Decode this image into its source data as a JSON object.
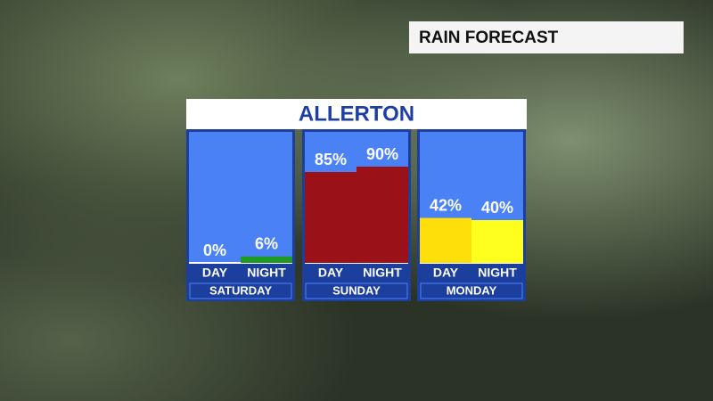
{
  "header": {
    "title": "RAIN FORECAST"
  },
  "chart_data": {
    "type": "bar",
    "title": "ALLERTON",
    "ylim": [
      0,
      100
    ],
    "groups": [
      {
        "name": "SATURDAY",
        "categories": [
          "DAY",
          "NIGHT"
        ],
        "values": [
          0,
          6
        ],
        "value_labels": [
          "0%",
          "6%"
        ],
        "colors": [
          "#ffffff",
          "#1f9a22"
        ]
      },
      {
        "name": "SUNDAY",
        "categories": [
          "DAY",
          "NIGHT"
        ],
        "values": [
          85,
          90
        ],
        "value_labels": [
          "85%",
          "90%"
        ],
        "colors": [
          "#9b1118",
          "#9b1118"
        ]
      },
      {
        "name": "MONDAY",
        "categories": [
          "DAY",
          "NIGHT"
        ],
        "values": [
          42,
          40
        ],
        "value_labels": [
          "42%",
          "40%"
        ],
        "colors": [
          "#ffdf0a",
          "#ffff1e"
        ]
      }
    ]
  }
}
